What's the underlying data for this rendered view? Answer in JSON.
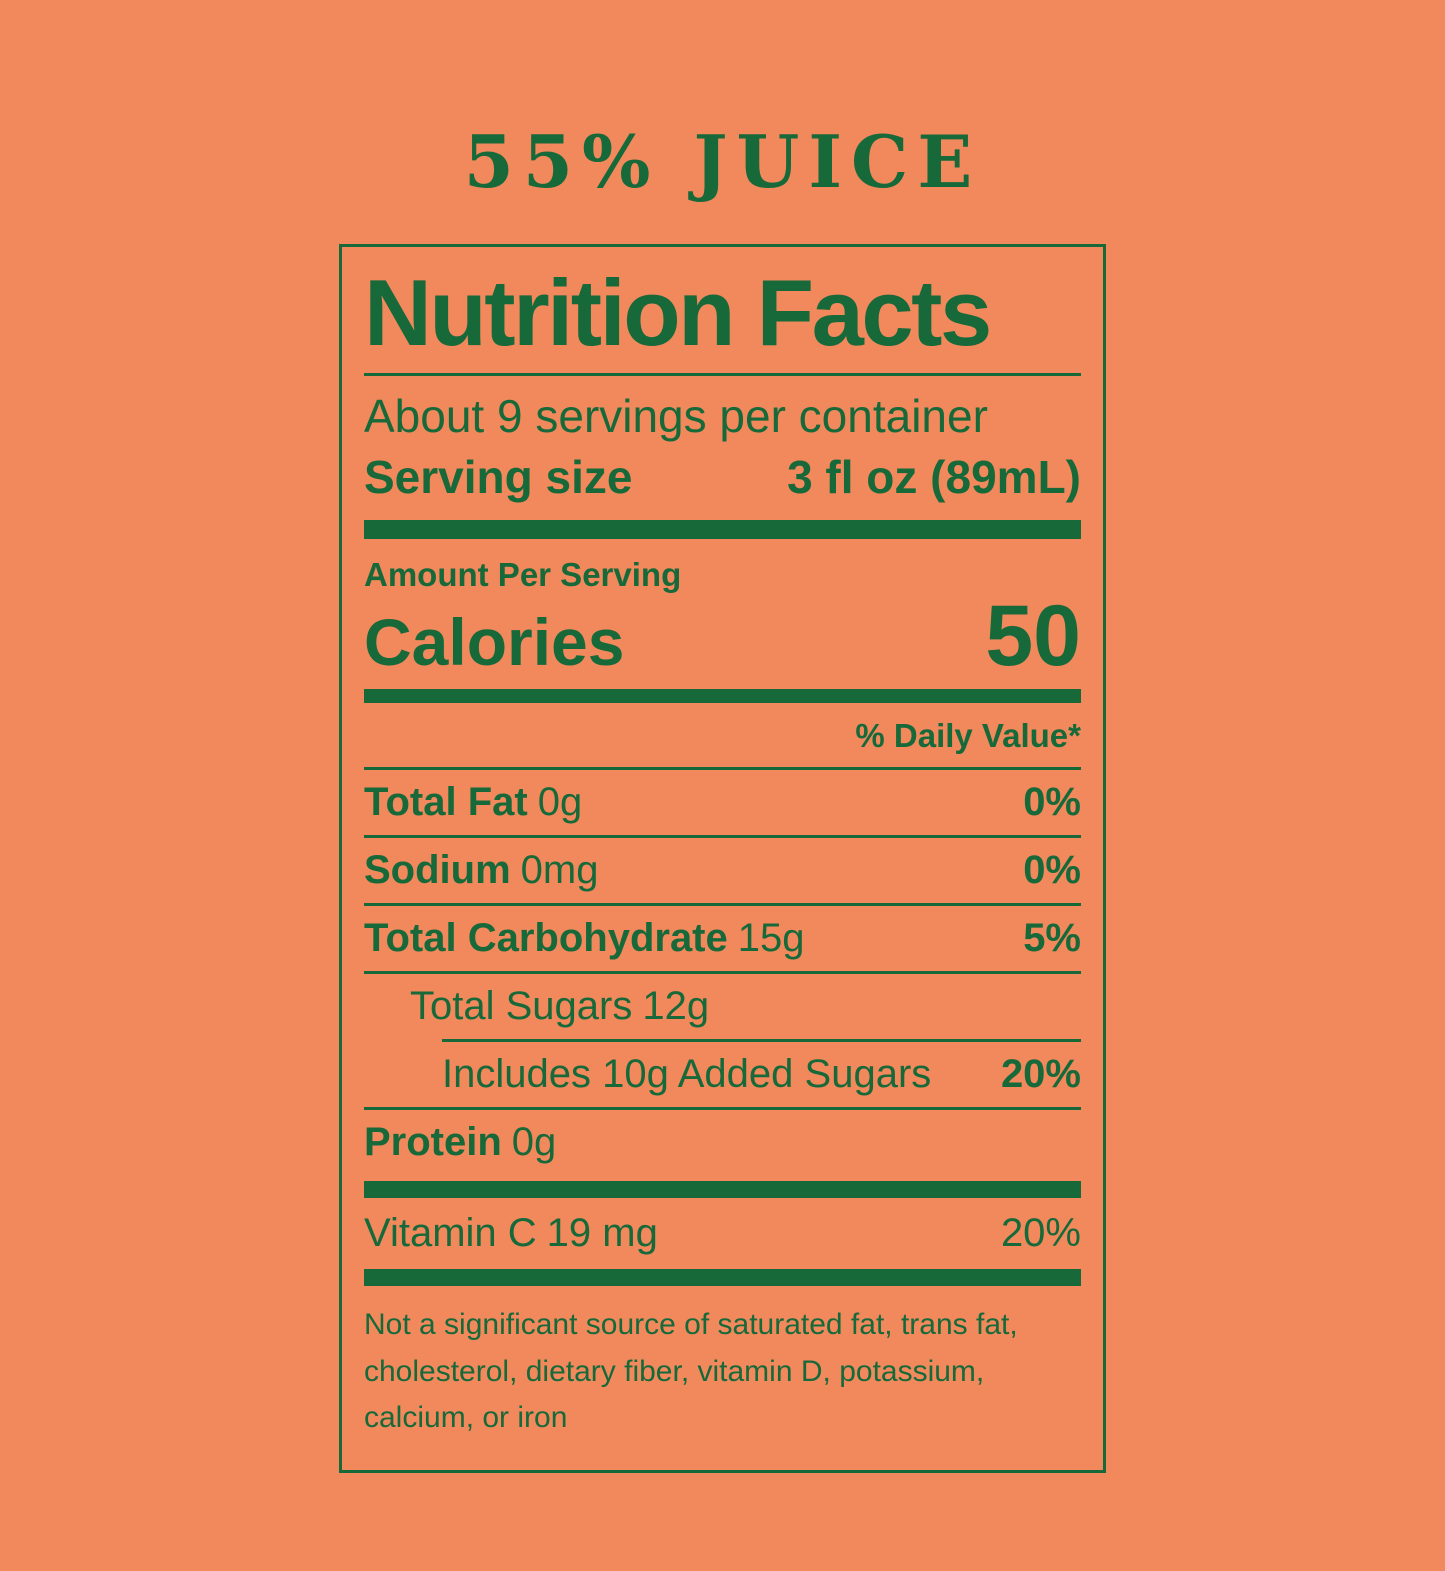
{
  "colors": {
    "background": "#F1895C",
    "green": "#17693A"
  },
  "header": {
    "title": "55% JUICE"
  },
  "label": {
    "title": "Nutrition Facts",
    "servings": "About 9 servings per container",
    "serving_size": {
      "label": "Serving size",
      "value": "3 fl oz (89mL)"
    },
    "amount_per_serving": "Amount Per Serving",
    "calories": {
      "label": "Calories",
      "value": "50"
    },
    "daily_value_header": "% Daily Value*",
    "nutrients": [
      {
        "name": "Total Fat",
        "amount": "0g",
        "dv": "0%"
      },
      {
        "name": "Sodium",
        "amount": "0mg",
        "dv": "0%"
      },
      {
        "name": "Total Carbohydrate",
        "amount": "15g",
        "dv": "5%"
      },
      {
        "name": "Total Sugars",
        "amount": "12g",
        "dv": ""
      },
      {
        "name": "Includes 10g Added Sugars",
        "amount": "",
        "dv": "20%"
      },
      {
        "name": "Protein",
        "amount": "0g",
        "dv": ""
      }
    ],
    "vitamins": [
      {
        "name": "Vitamin C",
        "amount": "19 mg",
        "dv": "20%"
      }
    ],
    "footnote": "Not a significant source of saturated fat, trans fat, cholesterol, dietary fiber, vitamin D, potassium, calcium, or iron"
  }
}
